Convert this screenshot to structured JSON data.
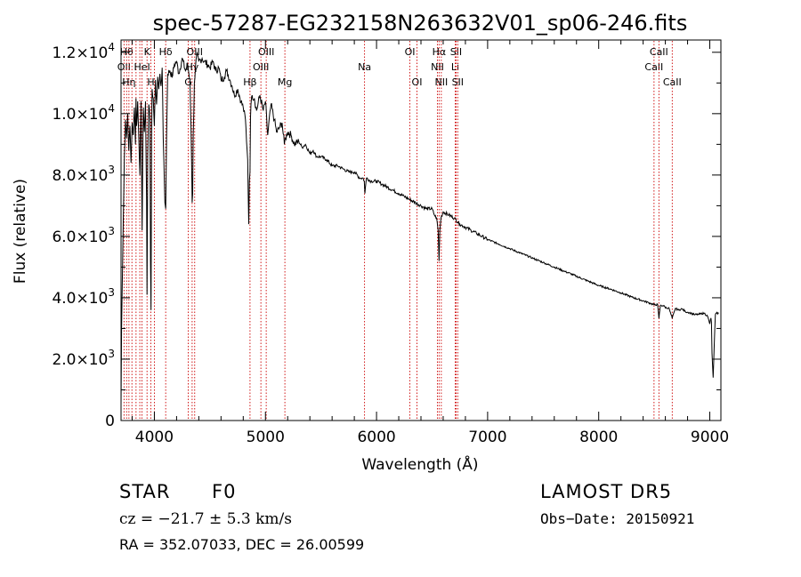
{
  "chart_data": {
    "type": "line",
    "title": "spec-57287-EG232158N263632V01_sp06-246.fits",
    "xlabel": "Wavelength (Å)",
    "ylabel": "Flux (relative)",
    "xlim": [
      3700,
      9100
    ],
    "ylim": [
      0,
      12400
    ],
    "x_ticks": [
      4000,
      5000,
      6000,
      7000,
      8000,
      9000
    ],
    "y_ticks": [
      {
        "value": 0,
        "mant": "0",
        "exp": ""
      },
      {
        "value": 2000,
        "mant": "2.0×10",
        "exp": "3"
      },
      {
        "value": 4000,
        "mant": "4.0×10",
        "exp": "3"
      },
      {
        "value": 6000,
        "mant": "6.0×10",
        "exp": "3"
      },
      {
        "value": 8000,
        "mant": "8.0×10",
        "exp": "3"
      },
      {
        "value": 10000,
        "mant": "1.0×10",
        "exp": "4"
      },
      {
        "value": 12000,
        "mant": "1.2×10",
        "exp": "4"
      }
    ],
    "grid": false,
    "series": [
      {
        "x": [
          3700,
          3705,
          3720,
          3730,
          3740,
          3750,
          3760,
          3770,
          3780,
          3790,
          3800,
          3810,
          3820,
          3830,
          3835,
          3840,
          3850,
          3860,
          3870,
          3880,
          3890,
          3900,
          3910,
          3920,
          3930,
          3934,
          3940,
          3950,
          3960,
          3965,
          3970,
          3975,
          3980,
          3990,
          4000,
          4010,
          4020,
          4030,
          4040,
          4050,
          4060,
          4070,
          4080,
          4095,
          4102,
          4110,
          4120,
          4140,
          4160,
          4180,
          4200,
          4220,
          4250,
          4280,
          4300,
          4320,
          4330,
          4340,
          4345,
          4350,
          4360,
          4380,
          4400,
          4430,
          4450,
          4480,
          4500,
          4530,
          4550,
          4580,
          4600,
          4630,
          4650,
          4680,
          4700,
          4720,
          4750,
          4780,
          4800,
          4820,
          4840,
          4850,
          4855,
          4861,
          4866,
          4870,
          4880,
          4900,
          4920,
          4950,
          4980,
          5000,
          5020,
          5050,
          5080,
          5100,
          5120,
          5150,
          5170,
          5180,
          5200,
          5230,
          5260,
          5300,
          5330,
          5360,
          5400,
          5430,
          5460,
          5500,
          5550,
          5600,
          5650,
          5700,
          5750,
          5800,
          5850,
          5880,
          5890,
          5895,
          5900,
          5910,
          5950,
          6000,
          6050,
          6100,
          6150,
          6200,
          6250,
          6300,
          6350,
          6400,
          6450,
          6500,
          6520,
          6540,
          6555,
          6563,
          6570,
          6580,
          6600,
          6650,
          6700,
          6750,
          6800,
          6850,
          6900,
          6950,
          7000,
          7100,
          7200,
          7300,
          7400,
          7500,
          7600,
          7700,
          7750,
          7800,
          7900,
          8000,
          8100,
          8200,
          8300,
          8400,
          8450,
          8500,
          8530,
          8542,
          8555,
          8580,
          8610,
          8630,
          8662,
          8690,
          8720,
          8750,
          8780,
          8800,
          8830,
          8860,
          8900,
          8950,
          8980,
          9000,
          9010,
          9015,
          9020,
          9030,
          9050,
          9060,
          9080
        ],
        "y": [
          500,
          3000,
          6500,
          8600,
          9800,
          9200,
          10000,
          8800,
          9600,
          8400,
          9700,
          9300,
          10200,
          9000,
          10500,
          9600,
          10400,
          9200,
          8000,
          10400,
          6200,
          10200,
          9400,
          10400,
          7200,
          4100,
          8600,
          10300,
          9800,
          5200,
          3600,
          9100,
          10800,
          10500,
          9600,
          11100,
          10300,
          11200,
          10800,
          11300,
          10900,
          11500,
          9200,
          7100,
          6900,
          9300,
          11300,
          11400,
          11200,
          11600,
          11700,
          11300,
          11800,
          11400,
          11600,
          11100,
          9600,
          7100,
          7400,
          9300,
          11000,
          11900,
          11700,
          11800,
          11700,
          11600,
          11500,
          11700,
          11400,
          11500,
          11100,
          11200,
          11400,
          11100,
          10900,
          10600,
          10800,
          10400,
          10200,
          9800,
          8500,
          6400,
          7800,
          8100,
          9900,
          10300,
          10600,
          10500,
          10100,
          10600,
          10100,
          10400,
          9300,
          10300,
          9800,
          9400,
          9500,
          9700,
          9000,
          9200,
          9400,
          9300,
          9000,
          9100,
          8900,
          9000,
          8700,
          8800,
          8600,
          8600,
          8500,
          8300,
          8300,
          8200,
          8100,
          8100,
          7900,
          7900,
          7800,
          7400,
          7600,
          7900,
          7800,
          7800,
          7700,
          7600,
          7500,
          7400,
          7300,
          7200,
          7100,
          7000,
          6900,
          6900,
          6700,
          6600,
          6200,
          5200,
          6200,
          6600,
          6800,
          6700,
          6600,
          6400,
          6300,
          6200,
          6100,
          6000,
          5900,
          5750,
          5600,
          5450,
          5300,
          5150,
          5000,
          4850,
          4780,
          4700,
          4550,
          4400,
          4290,
          4160,
          4020,
          3900,
          3840,
          3770,
          3780,
          3330,
          3740,
          3750,
          3660,
          3680,
          3330,
          3650,
          3600,
          3640,
          3550,
          3530,
          3500,
          3450,
          3460,
          3500,
          3400,
          3150,
          3340,
          3200,
          2200,
          1400,
          3450,
          3500,
          3490
        ]
      }
    ],
    "line_markers": [
      {
        "x": 3727,
        "label": "OII",
        "row": 1
      },
      {
        "x": 3750,
        "label": "Hθ",
        "row": 0
      },
      {
        "x": 3771,
        "label": "Hη",
        "row": 2
      },
      {
        "x": 3798,
        "label": "",
        "row": -1
      },
      {
        "x": 3835,
        "label": "",
        "row": -1
      },
      {
        "x": 3869,
        "label": "",
        "row": -1
      },
      {
        "x": 3889,
        "label": "HeI",
        "row": 1
      },
      {
        "x": 3934,
        "label": "K",
        "row": 0
      },
      {
        "x": 3969,
        "label": "H",
        "row": 2
      },
      {
        "x": 4000,
        "label": "",
        "row": -1
      },
      {
        "x": 4102,
        "label": "Hδ",
        "row": 0
      },
      {
        "x": 4305,
        "label": "G",
        "row": 2
      },
      {
        "x": 4340,
        "label": "Hγ",
        "row": 1
      },
      {
        "x": 4363,
        "label": "OIII",
        "row": 0
      },
      {
        "x": 4861,
        "label": "Hβ",
        "row": 2
      },
      {
        "x": 4959,
        "label": "OIII",
        "row": 1
      },
      {
        "x": 5007,
        "label": "OIII",
        "row": 0
      },
      {
        "x": 5175,
        "label": "Mg",
        "row": 2
      },
      {
        "x": 5892,
        "label": "Na",
        "row": 1
      },
      {
        "x": 6300,
        "label": "OI",
        "row": 0
      },
      {
        "x": 6364,
        "label": "OI",
        "row": 2
      },
      {
        "x": 6548,
        "label": "NII",
        "row": 1
      },
      {
        "x": 6563,
        "label": "Hα",
        "row": 0
      },
      {
        "x": 6583,
        "label": "NII",
        "row": 2
      },
      {
        "x": 6708,
        "label": "Li",
        "row": 1
      },
      {
        "x": 6716,
        "label": "SII",
        "row": 0
      },
      {
        "x": 6731,
        "label": "SII",
        "row": 2
      },
      {
        "x": 8498,
        "label": "CaII",
        "row": 1
      },
      {
        "x": 8542,
        "label": "CaII",
        "row": 0
      },
      {
        "x": 8662,
        "label": "CaII",
        "row": 2
      }
    ]
  },
  "info": {
    "class": "STAR",
    "subclass": "F0",
    "survey": "LAMOST DR5",
    "redshift": "cz = −21.7 ± 5.3 km/s",
    "obsdate": "Obs−Date: 20150921",
    "coords": "RA = 352.07033, DEC =  26.00599"
  },
  "colors": {
    "spectrum": "#000000",
    "line_marker": "#cc0000",
    "axes": "#000000"
  }
}
